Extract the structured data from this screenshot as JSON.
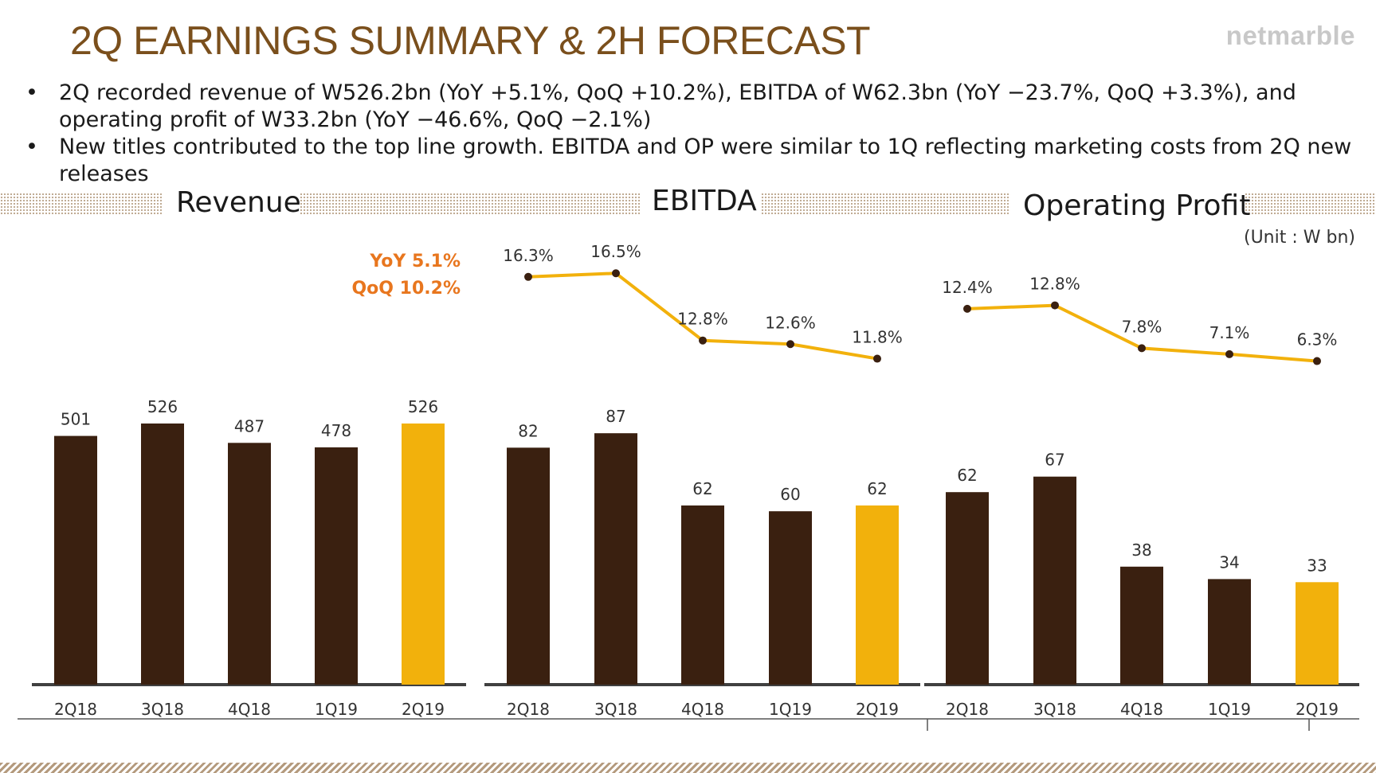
{
  "header": {
    "title": "2Q EARNINGS SUMMARY & 2H FORECAST",
    "logo": "netmarble"
  },
  "bullets": [
    "2Q recorded revenue of W526.2bn (YoY +5.1%, QoQ +10.2%), EBITDA of W62.3bn (YoY −23.7%, QoQ +3.3%), and operating profit of W33.2bn (YoY −46.6%, QoQ −2.1%)",
    "New titles contributed to the top line growth. EBITDA and OP were similar to 1Q reflecting marketing costs from 2Q new releases"
  ],
  "unit": "(Unit : W bn)",
  "revenue_callout": {
    "yoy": "YoY 5.1%",
    "qoq": "QoQ 10.2%"
  },
  "colors": {
    "dark_bar": "#3a2010",
    "highlight_bar": "#f2b10c",
    "line": "#f2b10c",
    "callout": "#e8761e",
    "title": "#7a4f1c"
  },
  "chart_data": [
    {
      "type": "bar",
      "title": "Revenue",
      "categories": [
        "2Q18",
        "3Q18",
        "4Q18",
        "1Q19",
        "2Q19"
      ],
      "values": [
        501,
        526,
        487,
        478,
        526
      ],
      "value_labels": [
        "501",
        "526",
        "487",
        "478",
        "526"
      ],
      "highlight_index": 4
    },
    {
      "type": "bar",
      "title": "EBITDA",
      "categories": [
        "2Q18",
        "3Q18",
        "4Q18",
        "1Q19",
        "2Q19"
      ],
      "values": [
        82,
        87,
        62,
        60,
        62
      ],
      "value_labels": [
        "82",
        "87",
        "62",
        "60",
        "62"
      ],
      "highlight_index": 4,
      "margin_line": {
        "values": [
          16.3,
          16.5,
          12.8,
          12.6,
          11.8
        ],
        "labels": [
          "16.3%",
          "16.5%",
          "12.8%",
          "12.6%",
          "11.8%"
        ]
      }
    },
    {
      "type": "bar",
      "title": "Operating Profit",
      "categories": [
        "2Q18",
        "3Q18",
        "4Q18",
        "1Q19",
        "2Q19"
      ],
      "values": [
        62,
        67,
        38,
        34,
        33
      ],
      "value_labels": [
        "62",
        "67",
        "38",
        "34",
        "33"
      ],
      "highlight_index": 4,
      "margin_line": {
        "values": [
          12.4,
          12.8,
          7.8,
          7.1,
          6.3
        ],
        "labels": [
          "12.4%",
          "12.8%",
          "7.8%",
          "7.1%",
          "6.3%"
        ]
      }
    }
  ]
}
